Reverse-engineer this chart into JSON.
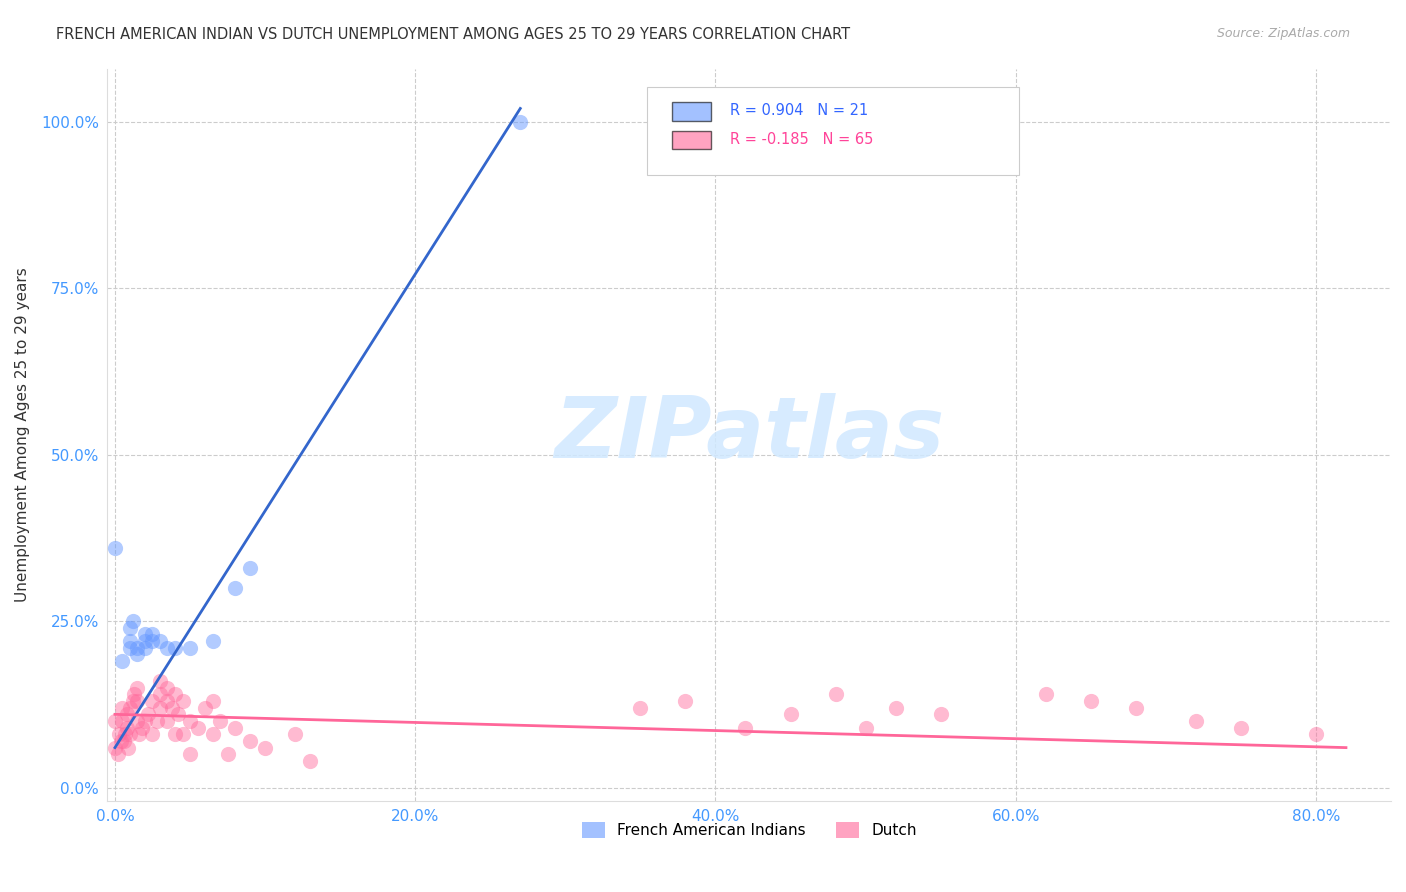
{
  "title": "FRENCH AMERICAN INDIAN VS DUTCH UNEMPLOYMENT AMONG AGES 25 TO 29 YEARS CORRELATION CHART",
  "source": "Source: ZipAtlas.com",
  "ylabel": "Unemployment Among Ages 25 to 29 years",
  "xlabel_ticks": [
    "0.0%",
    "20.0%",
    "40.0%",
    "60.0%",
    "80.0%"
  ],
  "ylabel_ticks": [
    "0.0%",
    "25.0%",
    "50.0%",
    "75.0%",
    "100.0%"
  ],
  "xmin": -0.005,
  "xmax": 0.85,
  "ymin": -0.02,
  "ymax": 1.08,
  "legend1_label": "French American Indians",
  "legend2_label": "Dutch",
  "r1": 0.904,
  "n1": 21,
  "r2": -0.185,
  "n2": 65,
  "color_blue": "#6699ff",
  "color_pink": "#ff6699",
  "color_blue_line": "#3366cc",
  "color_pink_line": "#ff6699",
  "watermark": "ZIPatlas",
  "watermark_color": "#d0e8ff",
  "french_american_indian_x": [
    0.0,
    0.005,
    0.01,
    0.01,
    0.01,
    0.012,
    0.015,
    0.015,
    0.02,
    0.02,
    0.02,
    0.025,
    0.025,
    0.03,
    0.035,
    0.04,
    0.05,
    0.065,
    0.08,
    0.09,
    0.27
  ],
  "french_american_indian_y": [
    0.36,
    0.19,
    0.21,
    0.22,
    0.24,
    0.25,
    0.2,
    0.21,
    0.22,
    0.23,
    0.21,
    0.22,
    0.23,
    0.22,
    0.21,
    0.21,
    0.21,
    0.22,
    0.3,
    0.33,
    1.0
  ],
  "dutch_x": [
    0.0,
    0.0,
    0.002,
    0.003,
    0.004,
    0.005,
    0.005,
    0.006,
    0.007,
    0.008,
    0.008,
    0.009,
    0.01,
    0.01,
    0.012,
    0.013,
    0.015,
    0.015,
    0.015,
    0.016,
    0.018,
    0.02,
    0.022,
    0.025,
    0.025,
    0.028,
    0.03,
    0.03,
    0.03,
    0.035,
    0.035,
    0.035,
    0.038,
    0.04,
    0.04,
    0.042,
    0.045,
    0.045,
    0.05,
    0.05,
    0.055,
    0.06,
    0.065,
    0.065,
    0.07,
    0.075,
    0.08,
    0.09,
    0.1,
    0.12,
    0.13,
    0.35,
    0.38,
    0.42,
    0.45,
    0.48,
    0.5,
    0.52,
    0.55,
    0.62,
    0.65,
    0.68,
    0.72,
    0.75,
    0.8
  ],
  "dutch_y": [
    0.06,
    0.1,
    0.05,
    0.08,
    0.07,
    0.1,
    0.12,
    0.07,
    0.08,
    0.09,
    0.11,
    0.06,
    0.08,
    0.12,
    0.13,
    0.14,
    0.1,
    0.13,
    0.15,
    0.08,
    0.09,
    0.1,
    0.11,
    0.08,
    0.13,
    0.1,
    0.12,
    0.14,
    0.16,
    0.13,
    0.15,
    0.1,
    0.12,
    0.08,
    0.14,
    0.11,
    0.08,
    0.13,
    0.1,
    0.05,
    0.09,
    0.12,
    0.13,
    0.08,
    0.1,
    0.05,
    0.09,
    0.07,
    0.06,
    0.08,
    0.04,
    0.12,
    0.13,
    0.09,
    0.11,
    0.14,
    0.09,
    0.12,
    0.11,
    0.14,
    0.13,
    0.12,
    0.1,
    0.09,
    0.08
  ],
  "blue_trend_x": [
    0.0,
    0.27
  ],
  "blue_trend_y": [
    0.06,
    1.02
  ],
  "pink_trend_x": [
    0.0,
    0.82
  ],
  "pink_trend_y": [
    0.11,
    0.06
  ]
}
